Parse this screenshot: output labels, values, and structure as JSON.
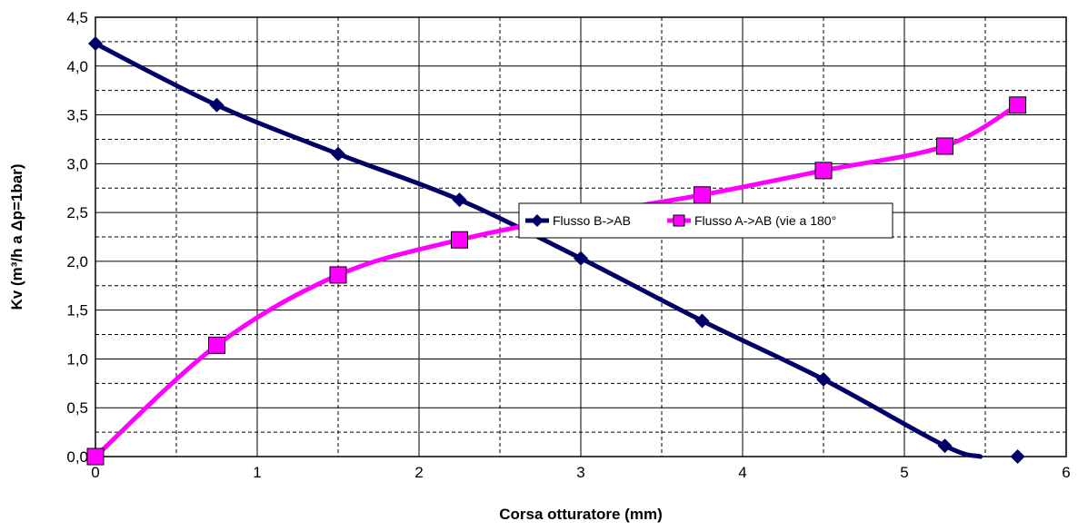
{
  "chart_data": {
    "type": "line",
    "title": "",
    "xlabel": "Corsa otturatore (mm)",
    "ylabel": "Kv (m³/h a Δp=1bar)",
    "xlim": [
      0,
      6
    ],
    "ylim": [
      0,
      4.5
    ],
    "x_ticks": [
      0,
      1,
      2,
      3,
      4,
      5,
      6
    ],
    "x_tick_labels": [
      "0",
      "1",
      "2",
      "3",
      "4",
      "5",
      "6"
    ],
    "y_ticks": [
      0,
      0.5,
      1,
      1.5,
      2,
      2.5,
      3,
      3.5,
      4,
      4.5
    ],
    "y_tick_labels": [
      "0,0",
      "0,5",
      "1,0",
      "1,5",
      "2,0",
      "2,5",
      "3,0",
      "3,5",
      "4,0",
      "4,5"
    ],
    "grid": "solid at major ticks, dashed at half ticks",
    "legend_position": "center-right, inside plot",
    "series": [
      {
        "name": "Flusso B->AB",
        "color": "#000066",
        "marker": "diamond",
        "x": [
          0,
          0.75,
          1.5,
          2.25,
          3.0,
          3.75,
          4.5,
          5.25,
          5.7
        ],
        "y": [
          4.23,
          3.6,
          3.1,
          2.63,
          2.03,
          1.39,
          0.79,
          0.11,
          0.0
        ],
        "curve_x": [
          0,
          0.75,
          1.5,
          2.25,
          3.0,
          3.75,
          4.5,
          5.25,
          5.47
        ],
        "curve_y": [
          4.23,
          3.6,
          3.1,
          2.63,
          2.03,
          1.39,
          0.79,
          0.11,
          0.0
        ]
      },
      {
        "name": "Flusso A->AB (vie a 180°",
        "color": "#ff00ff",
        "marker": "square",
        "x": [
          0,
          0.75,
          1.5,
          2.25,
          3.0,
          3.75,
          4.5,
          5.25,
          5.7
        ],
        "y": [
          0.0,
          1.14,
          1.86,
          2.22,
          2.47,
          2.68,
          2.93,
          3.18,
          3.6
        ],
        "curve_x": [
          0,
          0.75,
          1.5,
          2.25,
          3.0,
          3.75,
          4.5,
          5.25,
          5.7
        ],
        "curve_y": [
          0.0,
          1.14,
          1.86,
          2.22,
          2.47,
          2.68,
          2.93,
          3.18,
          3.6
        ]
      }
    ]
  }
}
